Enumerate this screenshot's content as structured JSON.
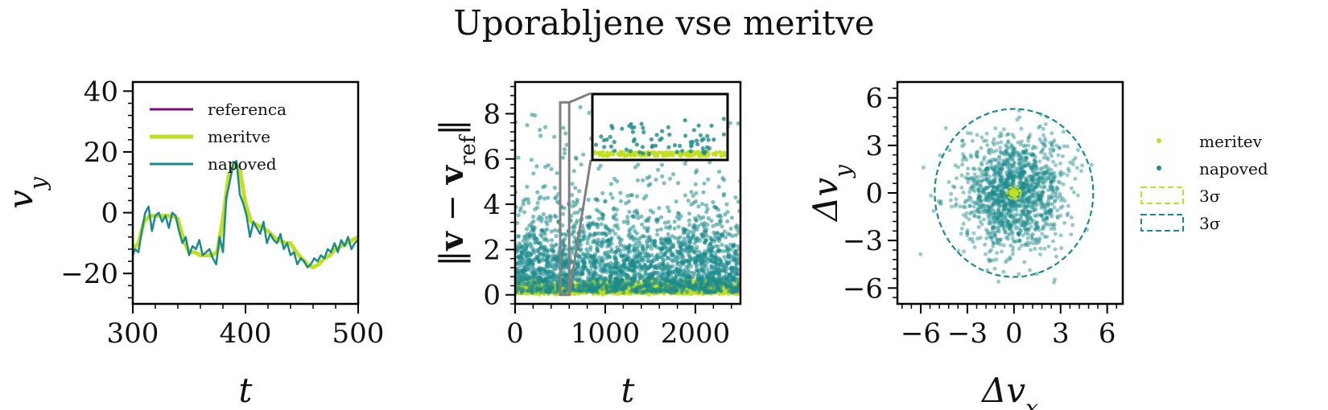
{
  "title": "Uporabljene vse meritve",
  "colors": {
    "referenca": "#7a0f7f",
    "meritve": "#c2df23",
    "napoved": "#1b8a8c",
    "inset_link": "#808080"
  },
  "chart_data": [
    {
      "id": "vy-time",
      "type": "line",
      "xlabel": "t",
      "ylabel": "v_y",
      "xlim": [
        300,
        500
      ],
      "ylim": [
        -30,
        43
      ],
      "xticks": [
        300,
        400,
        500
      ],
      "yticks": [
        -20,
        0,
        20,
        40
      ],
      "legend": "top-left",
      "series": [
        {
          "name": "referenca",
          "x": [
            300,
            500
          ],
          "y": [
            null,
            null
          ]
        },
        {
          "name": "meritve",
          "x": [
            300,
            305,
            310,
            315,
            320,
            325,
            330,
            335,
            340,
            345,
            350,
            355,
            360,
            365,
            370,
            375,
            380,
            385,
            390,
            395,
            400,
            405,
            410,
            415,
            420,
            425,
            430,
            435,
            440,
            445,
            450,
            455,
            460,
            465,
            470,
            475,
            480,
            485,
            490,
            495,
            500
          ],
          "y": [
            -12,
            -10,
            -3,
            -1,
            -1,
            -1,
            -1,
            -1,
            -2,
            -9,
            -13,
            -13,
            -14,
            -14,
            -14,
            -13,
            -2,
            12,
            16,
            14,
            3,
            -3,
            -4,
            -5,
            -6,
            -8,
            -9,
            -10,
            -10,
            -13,
            -15,
            -17,
            -18,
            -17,
            -15,
            -14,
            -12,
            -11,
            -10,
            -9,
            -8
          ]
        },
        {
          "name": "napoved",
          "x": [
            300,
            302,
            305,
            308,
            311,
            314,
            317,
            320,
            323,
            326,
            329,
            332,
            335,
            338,
            341,
            344,
            347,
            350,
            353,
            356,
            359,
            362,
            365,
            368,
            371,
            374,
            377,
            380,
            383,
            386,
            389,
            392,
            395,
            398,
            401,
            404,
            407,
            410,
            413,
            416,
            419,
            422,
            425,
            428,
            431,
            434,
            437,
            440,
            443,
            446,
            449,
            452,
            455,
            458,
            461,
            464,
            467,
            470,
            473,
            476,
            479,
            482,
            485,
            488,
            491,
            494,
            497,
            500
          ],
          "y": [
            -14,
            -12,
            -13,
            -6,
            0,
            2,
            -6,
            -1,
            0,
            -3,
            -1,
            -5,
            0,
            -1,
            -6,
            -10,
            -8,
            -14,
            -11,
            -12,
            -9,
            -14,
            -13,
            -12,
            -15,
            -17,
            -8,
            -13,
            5,
            10,
            16,
            17,
            6,
            3,
            -1,
            -8,
            -3,
            -5,
            -7,
            -3,
            -10,
            -7,
            -9,
            -10,
            -7,
            -12,
            -10,
            -14,
            -13,
            -17,
            -15,
            -16,
            -18,
            -17,
            -15,
            -16,
            -14,
            -15,
            -12,
            -13,
            -10,
            -13,
            -9,
            -11,
            -8,
            -12,
            -10,
            -9
          ]
        }
      ]
    },
    {
      "id": "error-time",
      "type": "scatter",
      "xlabel": "t",
      "ylabel": "||v − v_ref||",
      "xlim": [
        0,
        2500
      ],
      "ylim": [
        -0.4,
        9.4
      ],
      "xticks": [
        0,
        1000,
        2000
      ],
      "yticks": [
        0,
        2,
        4,
        6,
        8
      ],
      "inset": {
        "xlim": [
          500,
          600
        ],
        "ylim": [
          0,
          8.5
        ]
      },
      "series": [
        {
          "name": "meritve",
          "n": 2000,
          "value_range": [
            0,
            0.7
          ]
        },
        {
          "name": "napoved",
          "n": 2500,
          "value_range": [
            0,
            8.7
          ]
        }
      ]
    },
    {
      "id": "error-scatter",
      "type": "scatter",
      "xlabel": "Δv_x",
      "ylabel": "Δv_y",
      "xlim": [
        -7.5,
        7
      ],
      "ylim": [
        -7,
        7
      ],
      "xticks": [
        -6,
        -3,
        0,
        3,
        6
      ],
      "yticks": [
        -6,
        -3,
        0,
        3,
        6
      ],
      "legend": "right",
      "series": [
        {
          "name": "meritev",
          "kind": "points"
        },
        {
          "name": "napoved",
          "kind": "points",
          "n": 1400
        },
        {
          "name": "3σ",
          "kind": "ellipse",
          "center": [
            0,
            0
          ],
          "radius": [
            0.45,
            0.4
          ]
        },
        {
          "name": "3σ",
          "kind": "ellipse",
          "center": [
            0,
            0
          ],
          "radius": [
            5.1,
            5.3
          ]
        }
      ]
    }
  ]
}
